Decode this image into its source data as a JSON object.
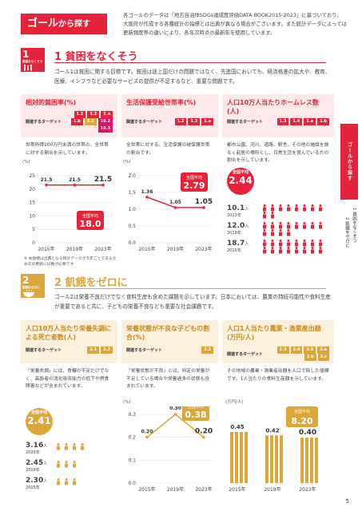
{
  "header": {
    "title": "ゴール",
    "title_suffix": "から探す",
    "intro": "各ゴールのデータは「地方自治体SDGs達成度評価DATA BOOK2015-2023」に基づいており、大阪府が作成する各種統計の指標とは出典が異なる場合がございます。また統計データによっては更新頻度等の違いにより、各年次時点の最新年を使用しています。"
  },
  "side": {
    "tab": "ゴールから探す",
    "toc": [
      "1 貧困をなくそう",
      "2 飢餓をゼロに"
    ]
  },
  "goal1": {
    "num": "1",
    "icon_text": "貧困をなくそう",
    "title": "1 貧困をなくそう",
    "color": "#e5243b",
    "desc": "ゴール1は貧困に関する目標です。貧困は途上国だけの問題ではなく、先進国においても、経済格差の拡大や、教育、医療、インフラなど必要なサービスの提供が不足するなど、重要な問題です。",
    "cards": [
      {
        "title": "相対的貧困率(%)",
        "target_label": "関連するターゲット",
        "chips": [
          "1.1",
          "1.2",
          "1.a",
          "1.b",
          "2.1",
          "10.2",
          "10.3"
        ],
        "text": "世帯所得200万円未満の世帯の、全世帯に対する割合を示しています。",
        "unit": "(%)",
        "avg_label": "全国平均",
        "avg_value": "18.0"
      },
      {
        "title": "生活保護受給世帯率(%)",
        "target_label": "関連するターゲット",
        "chips": [
          "1.2",
          "1.3",
          "1.a"
        ],
        "text": "全世帯に対する、生活保護の被保護世帯の割合です。",
        "unit": "(%)",
        "avg_label": "全国平均",
        "avg_value": "2.79"
      },
      {
        "title": "人口10万人当たりホームレス数(人)",
        "target_label": "関連するターゲット",
        "chips": [
          "1.3",
          "1.4",
          "1.a",
          "1.b"
        ],
        "text": "都市公園、河川、道路、駅舎、その他の施設を故なく起居の場所とし、日常生活を営んでいる方の割合を示しています。",
        "avg_label": "全国平均",
        "avg_value": "2.44",
        "values": [
          {
            "v": "10.1",
            "u": "人",
            "y": "2023年"
          },
          {
            "v": "12.0",
            "u": "人",
            "y": "2019年"
          },
          {
            "v": "18.7",
            "u": "人",
            "y": "2015年"
          }
        ]
      }
    ],
    "note": "※ 本指標は出典となる統計データが５年ごとであるため次の更新には数が必要です"
  },
  "goal2": {
    "num": "2",
    "icon_text": "飢餓をゼロに",
    "title": "2 飢餓をゼロに",
    "color": "#dda63a",
    "desc": "ゴール2は栄養不良だけでなく食料生産も含めた課題を示しています。日本においては、農業の持続可能性や食料生産が重要であると共に、子どもの栄養不良なども重要な社会課題です。",
    "cards": [
      {
        "title": "人口10万人当たり栄養失調による死亡者数(人)",
        "target_label": "関連するターゲット",
        "chips": [
          "2.1",
          "2.2"
        ],
        "text": "「栄養失調」には、食糧の不足だけでなく、高齢者の消化吸収能力の低下や摂食障害などが含まれています。",
        "avg_label": "全国平均",
        "avg_value": "2.41",
        "values": [
          {
            "v": "3.16",
            "u": "人",
            "y": "2023年"
          },
          {
            "v": "2.45",
            "u": "人",
            "y": "2019年"
          },
          {
            "v": "2.30",
            "u": "人",
            "y": "2015年"
          }
        ]
      },
      {
        "title": "栄養状態が不良な子どもの割合(%)",
        "target_label": "関連するターゲット",
        "chips": [
          "2.2"
        ],
        "text": "「栄養状態が不良」とは、特定の栄養が不足している場合や栄養過多の状態も含まれています。",
        "unit": "(%)",
        "avg_label": "全国平均",
        "avg_value": "0.38"
      },
      {
        "title": "人口1人当たり農業・漁業産出額(万円/人)",
        "target_label": "関連するターゲット",
        "chips": [
          "2.3",
          "2.4",
          "2.5",
          "2.a",
          "2.b",
          "2.c"
        ],
        "text": "その地域の農業・漁業産出額を人口で除した値標です。1人当たりの食料生産額を示しています。",
        "unit": "(万円/人)",
        "avg_label": "全国平均",
        "avg_value": "8.20"
      }
    ]
  },
  "chart_data": [
    {
      "type": "line",
      "title": "相対的貧困率(%)",
      "categories": [
        "2015年",
        "2019年",
        "2023年"
      ],
      "values": [
        21.5,
        21.5,
        21.5
      ],
      "ylim": [
        0,
        25
      ],
      "yticks": [
        0,
        5,
        10,
        15,
        20,
        25
      ]
    },
    {
      "type": "line",
      "title": "生活保護受給世帯率(%)",
      "categories": [
        "2015年",
        "2019年",
        "2023年"
      ],
      "values": [
        1.36,
        1.05,
        1.05
      ],
      "ylim": [
        0,
        2.0
      ],
      "yticks": [
        "0.0",
        "0.5",
        "1.0",
        "1.5",
        "2.0"
      ]
    },
    {
      "type": "line",
      "title": "栄養状態が不良な子どもの割合(%)",
      "categories": [
        "2015年",
        "2019年",
        "2023年"
      ],
      "values": [
        0.2,
        0.3,
        0.2
      ],
      "ylim": [
        0,
        0.3
      ],
      "yticks": [
        "0.0",
        "0.1",
        "0.2",
        "0.3"
      ]
    },
    {
      "type": "bar",
      "title": "人口1人当たり農業・漁業産出額(万円/人)",
      "categories": [
        "2015年",
        "2019年",
        "2023年"
      ],
      "values": [
        0.45,
        0.42,
        0.4
      ]
    }
  ],
  "page": {
    "number": "5"
  }
}
